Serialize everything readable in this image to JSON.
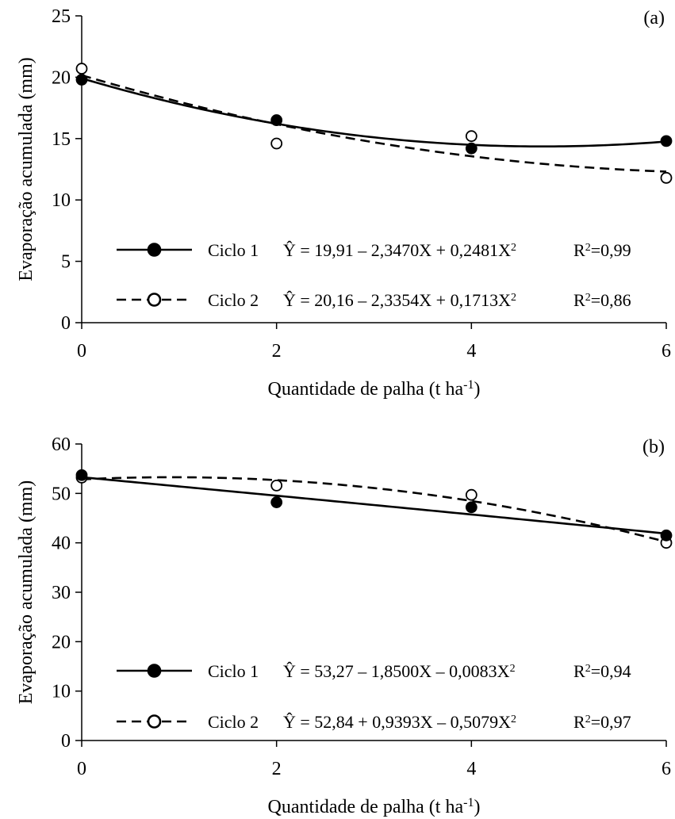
{
  "chart_data": [
    {
      "panel_label": "(a)",
      "type": "scatter",
      "xlabel": "Quantidade de palha (t ha",
      "xlabel_sup": "-1",
      "xlabel_close": ")",
      "ylabel": "Evaporação acumulada (mm)",
      "xlim": [
        0,
        6
      ],
      "ylim": [
        0,
        25
      ],
      "xticks": [
        "0",
        "2",
        "4",
        "6"
      ],
      "yticks": [
        "0",
        "5",
        "10",
        "15",
        "20",
        "25"
      ],
      "grid": false,
      "legend_position": "bottom-left",
      "series": [
        {
          "name": "Ciclo 1",
          "marker": "filled-circle",
          "line": "solid",
          "x": [
            0,
            2,
            4,
            6
          ],
          "y": [
            19.8,
            16.5,
            14.2,
            14.8
          ],
          "fit": [
            19.91,
            -2.347,
            0.2481
          ],
          "equation": "Ŷ = 19,91 – 2,3470X + 0,2481X",
          "equation_sup": "2",
          "r2_label": "R",
          "r2_sup": "2",
          "r2_value": "=0,99"
        },
        {
          "name": "Ciclo 2",
          "marker": "open-circle",
          "line": "dashed",
          "x": [
            0,
            2,
            4,
            6
          ],
          "y": [
            20.7,
            14.6,
            15.2,
            11.8
          ],
          "fit": [
            20.16,
            -2.3354,
            0.1713
          ],
          "equation": "Ŷ = 20,16 – 2,3354X + 0,1713X",
          "equation_sup": "2",
          "r2_label": "R",
          "r2_sup": "2",
          "r2_value": "=0,86"
        }
      ]
    },
    {
      "panel_label": "(b)",
      "type": "scatter",
      "xlabel": "Quantidade de palha (t ha",
      "xlabel_sup": "-1",
      "xlabel_close": ")",
      "ylabel": "Evaporação acumulada (mm)",
      "xlim": [
        0,
        6
      ],
      "ylim": [
        0,
        60
      ],
      "xticks": [
        "0",
        "2",
        "4",
        "6"
      ],
      "yticks": [
        "0",
        "10",
        "20",
        "30",
        "40",
        "50",
        "60"
      ],
      "grid": false,
      "legend_position": "bottom-left",
      "series": [
        {
          "name": "Ciclo 1",
          "marker": "filled-circle",
          "line": "solid",
          "x": [
            0,
            2,
            4,
            6
          ],
          "y": [
            53.7,
            48.2,
            47.2,
            41.5
          ],
          "fit": [
            53.27,
            -1.85,
            -0.0083
          ],
          "equation": "Ŷ = 53,27 – 1,8500X – 0,0083X",
          "equation_sup": "2",
          "r2_label": "R",
          "r2_sup": "2",
          "r2_value": "=0,94"
        },
        {
          "name": "Ciclo 2",
          "marker": "open-circle",
          "line": "dashed",
          "x": [
            0,
            2,
            4,
            6
          ],
          "y": [
            53.2,
            51.6,
            49.7,
            40.0
          ],
          "fit": [
            52.84,
            0.9393,
            -0.5079
          ],
          "equation": "Ŷ = 52,84 + 0,9393X – 0,5079X",
          "equation_sup": "2",
          "r2_label": "R",
          "r2_sup": "2",
          "r2_value": "=0,97"
        }
      ]
    }
  ]
}
